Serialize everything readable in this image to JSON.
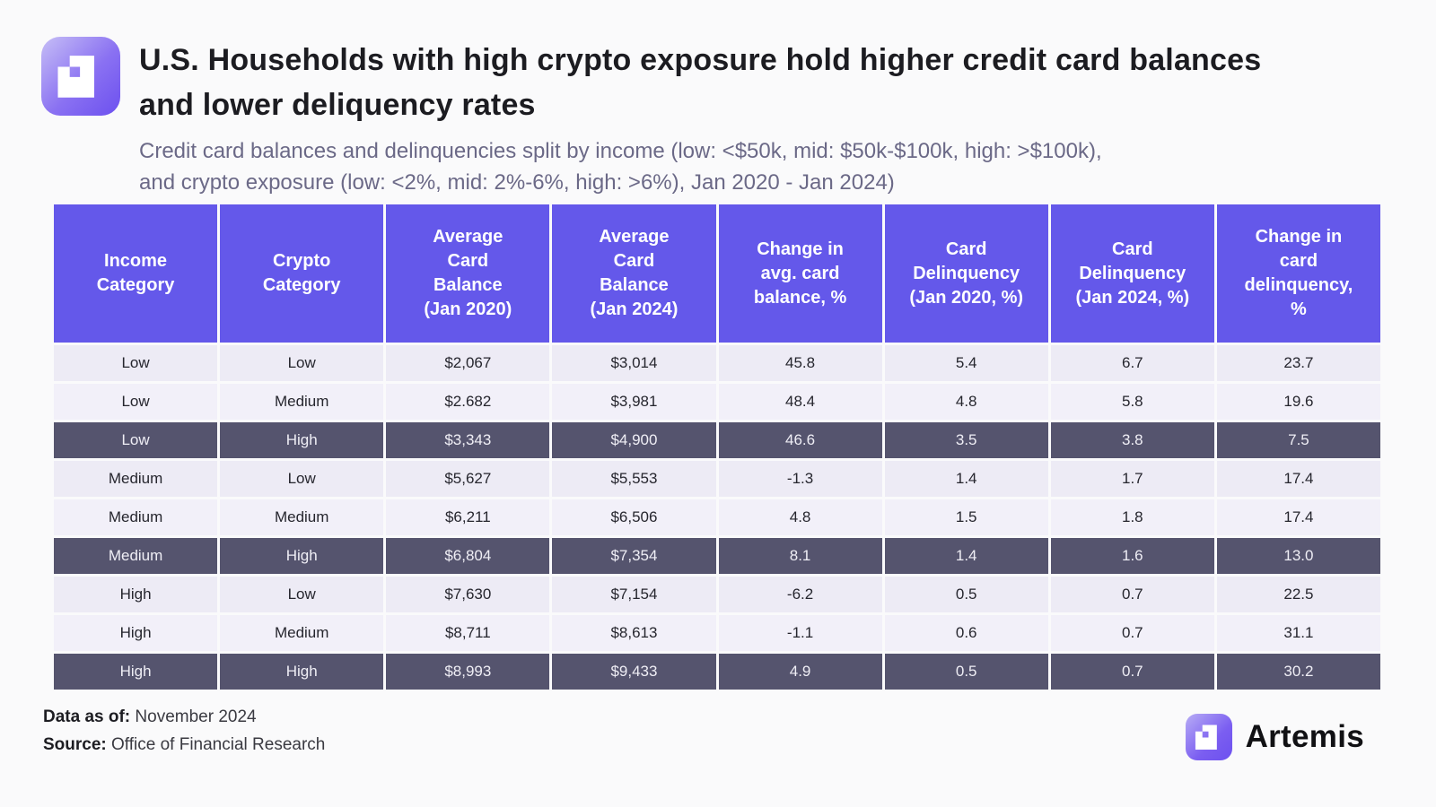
{
  "colors": {
    "page_bg": "#FAFAFB",
    "header_bg": "#6458EA",
    "highlight_row_bg": "#55546E",
    "row_bg": "#EDEBF5",
    "row_alt_bg": "#F2F0F9",
    "grid_line": "#FFFFFF",
    "title_color": "#1C1C21",
    "subtitle_color": "#6B6987",
    "logo_gradient_from": "#C6BEF6",
    "logo_gradient_to": "#6C50EF"
  },
  "header": {
    "title": "U.S. Households with high crypto exposure hold higher credit card balances\nand lower deliquency rates",
    "subtitle": "Credit card balances and delinquencies split by income (low: <$50k, mid: $50k-$100k, high: >$100k),\nand crypto exposure (low: <2%, mid: 2%-6%, high: >6%), Jan 2020 - Jan 2024)"
  },
  "table": {
    "columns": [
      "Income\nCategory",
      "Crypto\nCategory",
      "Average\nCard\nBalance\n(Jan 2020)",
      "Average\nCard\nBalance\n(Jan 2024)",
      "Change in\navg. card\nbalance, %",
      "Card\nDelinquency\n(Jan 2020, %)",
      "Card\nDelinquency\n(Jan 2024, %)",
      "Change in\ncard\ndelinquency,\n%"
    ],
    "rows": [
      {
        "highlight": false,
        "cells": [
          "Low",
          "Low",
          "$2,067",
          "$3,014",
          "45.8",
          "5.4",
          "6.7",
          "23.7"
        ]
      },
      {
        "highlight": false,
        "cells": [
          "Low",
          "Medium",
          "$2.682",
          "$3,981",
          "48.4",
          "4.8",
          "5.8",
          "19.6"
        ]
      },
      {
        "highlight": true,
        "cells": [
          "Low",
          "High",
          "$3,343",
          "$4,900",
          "46.6",
          "3.5",
          "3.8",
          "7.5"
        ]
      },
      {
        "highlight": false,
        "cells": [
          "Medium",
          "Low",
          "$5,627",
          "$5,553",
          "-1.3",
          "1.4",
          "1.7",
          "17.4"
        ]
      },
      {
        "highlight": false,
        "cells": [
          "Medium",
          "Medium",
          "$6,211",
          "$6,506",
          "4.8",
          "1.5",
          "1.8",
          "17.4"
        ]
      },
      {
        "highlight": true,
        "cells": [
          "Medium",
          "High",
          "$6,804",
          "$7,354",
          "8.1",
          "1.4",
          "1.6",
          "13.0"
        ]
      },
      {
        "highlight": false,
        "cells": [
          "High",
          "Low",
          "$7,630",
          "$7,154",
          "-6.2",
          "0.5",
          "0.7",
          "22.5"
        ]
      },
      {
        "highlight": false,
        "cells": [
          "High",
          "Medium",
          "$8,711",
          "$8,613",
          "-1.1",
          "0.6",
          "0.7",
          "31.1"
        ]
      },
      {
        "highlight": true,
        "cells": [
          "High",
          "High",
          "$8,993",
          "$9,433",
          "4.9",
          "0.5",
          "0.7",
          "30.2"
        ]
      }
    ]
  },
  "footer": {
    "data_as_of_label": "Data as of:",
    "data_as_of_value": " November 2024",
    "source_label": "Source:",
    "source_value": " Office of Financial Research",
    "brand_name": "Artemis"
  },
  "chart_data": {
    "type": "table",
    "title": "U.S. Households with high crypto exposure hold higher credit card balances and lower deliquency rates",
    "subtitle": "Credit card balances and delinquencies split by income (low: <$50k, mid: $50k-$100k, high: >$100k), and crypto exposure (low: <2%, mid: 2%-6%, high: >6%), Jan 2020 - Jan 2024)",
    "columns": [
      "Income Category",
      "Crypto Category",
      "Average Card Balance (Jan 2020)",
      "Average Card Balance (Jan 2024)",
      "Change in avg. card balance, %",
      "Card Delinquency (Jan 2020, %)",
      "Card Delinquency (Jan 2024, %)",
      "Change in card delinquency, %"
    ],
    "rows": [
      [
        "Low",
        "Low",
        2067,
        3014,
        45.8,
        5.4,
        6.7,
        23.7
      ],
      [
        "Low",
        "Medium",
        2682,
        3981,
        48.4,
        4.8,
        5.8,
        19.6
      ],
      [
        "Low",
        "High",
        3343,
        4900,
        46.6,
        3.5,
        3.8,
        7.5
      ],
      [
        "Medium",
        "Low",
        5627,
        5553,
        -1.3,
        1.4,
        1.7,
        17.4
      ],
      [
        "Medium",
        "Medium",
        6211,
        6506,
        4.8,
        1.5,
        1.8,
        17.4
      ],
      [
        "Medium",
        "High",
        6804,
        7354,
        8.1,
        1.4,
        1.6,
        13.0
      ],
      [
        "High",
        "Low",
        7630,
        7154,
        -6.2,
        0.5,
        0.7,
        22.5
      ],
      [
        "High",
        "Medium",
        8711,
        8613,
        -1.1,
        0.6,
        0.7,
        31.1
      ],
      [
        "High",
        "High",
        8993,
        9433,
        4.9,
        0.5,
        0.7,
        30.2
      ]
    ],
    "highlighted_rows": [
      2,
      5,
      8
    ],
    "data_as_of": "November 2024",
    "source": "Office of Financial Research"
  }
}
